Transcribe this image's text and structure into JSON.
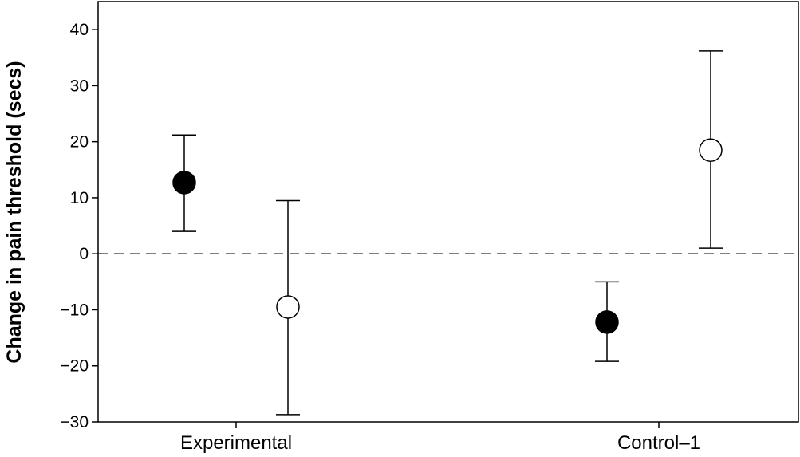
{
  "chart_data": {
    "type": "scatter",
    "title": "",
    "xlabel": "",
    "ylabel": "Change in pain threshold (secs)",
    "categories": [
      "Experimental",
      "Control-1"
    ],
    "ylim": [
      -30,
      45
    ],
    "yticks": [
      -30,
      -20,
      -10,
      0,
      10,
      20,
      30,
      40
    ],
    "ytick_labels": [
      "−30",
      "−20",
      "−10",
      "0",
      "10",
      "20",
      "30",
      "40"
    ],
    "category_labels": [
      "Experimental",
      "Control–1"
    ],
    "reference_line": {
      "y": 0,
      "style": "dashed"
    },
    "grid": false,
    "legend": "none",
    "series": [
      {
        "marker": "filled-circle",
        "color": "#000000",
        "points": [
          {
            "category": "Experimental",
            "y": 12.7,
            "lower": 4.0,
            "upper": 21.2
          },
          {
            "category": "Control-1",
            "y": -12.2,
            "lower": -19.2,
            "upper": -5.0
          }
        ]
      },
      {
        "marker": "open-circle",
        "color": "#000000",
        "points": [
          {
            "category": "Experimental",
            "y": -9.5,
            "lower": -28.7,
            "upper": 9.5
          },
          {
            "category": "Control-1",
            "y": 18.5,
            "lower": 1.0,
            "upper": 36.2
          }
        ]
      }
    ]
  }
}
